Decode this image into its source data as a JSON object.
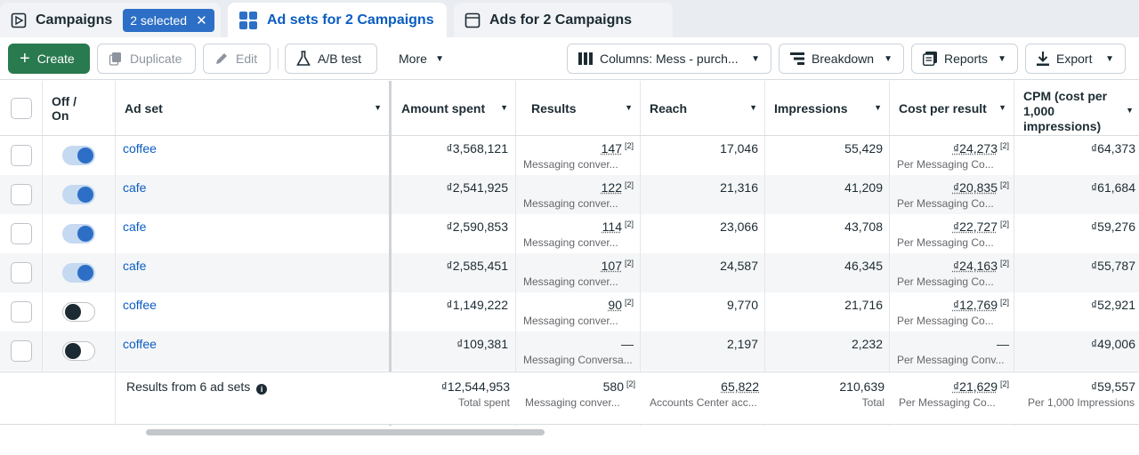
{
  "tabs": {
    "campaigns": "Campaigns",
    "selected_badge": "2 selected",
    "adsets": "Ad sets for 2 Campaigns",
    "ads": "Ads for 2 Campaigns"
  },
  "toolbar": {
    "create": "Create",
    "duplicate": "Duplicate",
    "edit": "Edit",
    "ab_test": "A/B test",
    "more": "More",
    "columns": "Columns: Mess - purch...",
    "breakdown": "Breakdown",
    "reports": "Reports",
    "export": "Export"
  },
  "columns": {
    "offon": [
      "Off /",
      "On"
    ],
    "adset": "Ad set",
    "amount": "Amount spent",
    "results": "Results",
    "reach": "Reach",
    "impressions": "Impressions",
    "cpr": "Cost per result",
    "cpm": [
      "CPM (cost per",
      "1,000",
      "impressions)"
    ]
  },
  "rows": [
    {
      "on": true,
      "name": "coffee",
      "amount": "₫3,568,121",
      "results": "147",
      "results_sub": "Messaging conver...",
      "reach": "17,046",
      "impressions": "55,429",
      "cpr": "₫24,273",
      "cpr_sub": "Per Messaging Co...",
      "cpm": "₫64,373"
    },
    {
      "on": true,
      "name": "cafe",
      "amount": "₫2,541,925",
      "results": "122",
      "results_sub": "Messaging conver...",
      "reach": "21,316",
      "impressions": "41,209",
      "cpr": "₫20,835",
      "cpr_sub": "Per Messaging Co...",
      "cpm": "₫61,684"
    },
    {
      "on": true,
      "name": "cafe",
      "amount": "₫2,590,853",
      "results": "114",
      "results_sub": "Messaging conver...",
      "reach": "23,066",
      "impressions": "43,708",
      "cpr": "₫22,727",
      "cpr_sub": "Per Messaging Co...",
      "cpm": "₫59,276"
    },
    {
      "on": true,
      "name": "cafe",
      "amount": "₫2,585,451",
      "results": "107",
      "results_sub": "Messaging conver...",
      "reach": "24,587",
      "impressions": "46,345",
      "cpr": "₫24,163",
      "cpr_sub": "Per Messaging Co...",
      "cpm": "₫55,787"
    },
    {
      "on": false,
      "name": "coffee",
      "amount": "₫1,149,222",
      "results": "90",
      "results_sub": "Messaging conver...",
      "reach": "9,770",
      "impressions": "21,716",
      "cpr": "₫12,769",
      "cpr_sub": "Per Messaging Co...",
      "cpm": "₫52,921"
    },
    {
      "on": false,
      "name": "coffee",
      "amount": "₫109,381",
      "results": "—",
      "results_sub": "Messaging Conversa...",
      "reach": "2,197",
      "impressions": "2,232",
      "cpr": "—",
      "cpr_sub": "Per Messaging Conv...",
      "cpm": "₫49,006"
    }
  ],
  "sup": "[2]",
  "footer": {
    "label": "Results from 6 ad sets",
    "amount": "₫12,544,953",
    "amount_sub": "Total spent",
    "results": "580",
    "results_sub": "Messaging conver...",
    "reach": "65,822",
    "reach_sub": "Accounts Center acc...",
    "impressions": "210,639",
    "impressions_sub": "Total",
    "cpr": "₫21,629",
    "cpr_sub": "Per Messaging Co...",
    "cpm": "₫59,557",
    "cpm_sub": "Per 1,000 Impressions"
  }
}
